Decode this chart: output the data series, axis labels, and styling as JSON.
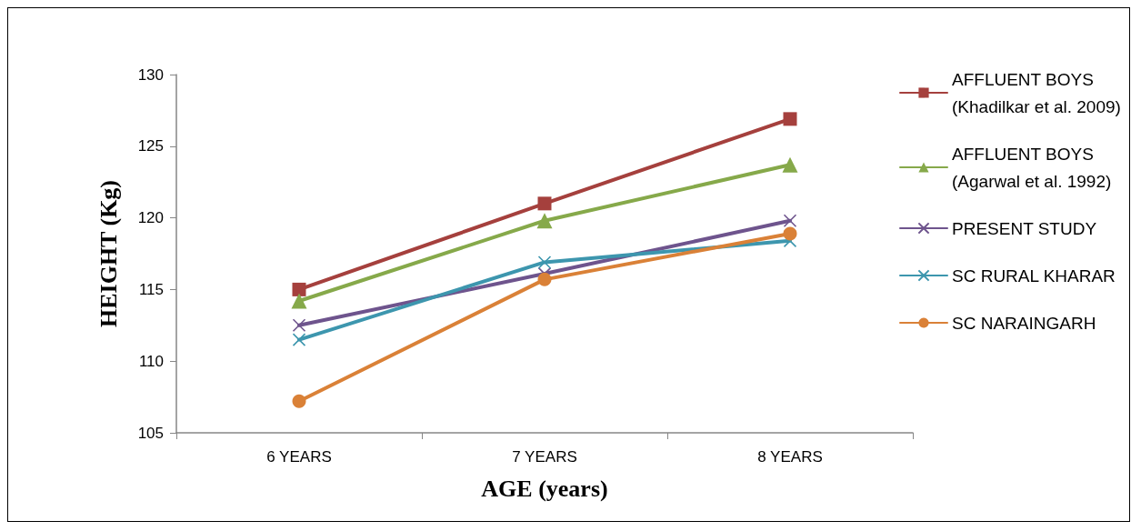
{
  "chart_data": {
    "type": "line",
    "xlabel": "AGE (years)",
    "ylabel": "HEIGHT (Kg)",
    "categories": [
      "6 YEARS",
      "7 YEARS",
      "8 YEARS"
    ],
    "series": [
      {
        "name": "AFFLUENT BOYS (Khadilkar et al. 2009)",
        "color": "#a5403d",
        "marker": "square",
        "values": [
          115.0,
          121.0,
          126.9
        ]
      },
      {
        "name": "AFFLUENT BOYS (Agarwal et al. 1992)",
        "color": "#86a94a",
        "marker": "triangle",
        "values": [
          114.2,
          119.8,
          123.7
        ]
      },
      {
        "name": "PRESENT STUDY",
        "color": "#6e548d",
        "marker": "cross",
        "values": [
          112.5,
          116.1,
          119.8
        ]
      },
      {
        "name": "SC RURAL KHARAR",
        "color": "#3d96ae",
        "marker": "cross",
        "values": [
          111.5,
          116.9,
          118.4
        ]
      },
      {
        "name": "SC NARAINGARH",
        "color": "#da8137",
        "marker": "circle",
        "values": [
          107.2,
          115.7,
          118.9
        ]
      }
    ],
    "ylim": [
      105,
      130
    ],
    "yticks": [
      105,
      110,
      115,
      120,
      125,
      130
    ],
    "grid": false,
    "legend": "right",
    "line_style": "solid"
  }
}
